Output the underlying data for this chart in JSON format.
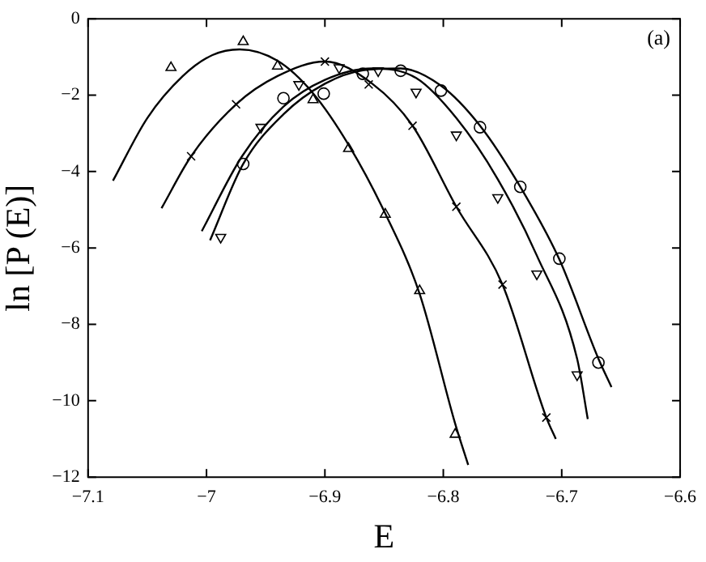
{
  "chart_data": {
    "type": "scatter",
    "xlabel": "E",
    "ylabel": "ln [P (E)]",
    "annotations": [
      "(a)"
    ],
    "xlim": [
      -7.1,
      -6.6
    ],
    "xticks": [
      -7.1,
      -7,
      -6.9,
      -6.8,
      -6.7,
      -6.6
    ],
    "ylim": [
      -12,
      0
    ],
    "yticks": [
      -12,
      -10,
      -8,
      -6,
      -4,
      -2,
      0
    ],
    "grid": false,
    "legend": false,
    "series": [
      {
        "type": "scatter",
        "marker": "triangle",
        "color": "#000000",
        "x": [
          -7.03,
          -6.969,
          -6.94,
          -6.91,
          -6.88,
          -6.849,
          -6.82,
          -6.79
        ],
        "values": [
          -1.28,
          -0.6,
          -1.24,
          -2.12,
          -3.4,
          -5.12,
          -7.12,
          -10.88
        ]
      },
      {
        "type": "scatter",
        "marker": "cross",
        "color": "#000000",
        "x": [
          -7.013,
          -6.975,
          -6.9,
          -6.863,
          -6.826,
          -6.789,
          -6.75,
          -6.713
        ],
        "values": [
          -3.6,
          -2.24,
          -1.12,
          -1.72,
          -2.8,
          -4.92,
          -6.96,
          -10.44
        ]
      },
      {
        "type": "scatter",
        "marker": "circle",
        "color": "#000000",
        "x": [
          -6.969,
          -6.935,
          -6.901,
          -6.868,
          -6.836,
          -6.802,
          -6.769,
          -6.735,
          -6.702,
          -6.669
        ],
        "values": [
          -3.8,
          -2.08,
          -1.96,
          -1.44,
          -1.36,
          -1.88,
          -2.84,
          -4.4,
          -6.28,
          -9.0
        ]
      },
      {
        "type": "scatter",
        "marker": "triangle-down",
        "color": "#000000",
        "x": [
          -6.988,
          -6.954,
          -6.922,
          -6.888,
          -6.855,
          -6.823,
          -6.789,
          -6.754,
          -6.721,
          -6.687
        ],
        "values": [
          -5.72,
          -2.84,
          -1.72,
          -1.28,
          -1.36,
          -1.92,
          -3.04,
          -4.68,
          -6.68,
          -9.32
        ]
      },
      {
        "type": "line",
        "marker": "none",
        "line_style": "solid",
        "color": "#000000",
        "x": [
          -7.079,
          -7.05,
          -7.02,
          -6.995,
          -6.972,
          -6.94,
          -6.91,
          -6.88,
          -6.849,
          -6.82,
          -6.79,
          -6.779
        ],
        "values": [
          -4.24,
          -2.6,
          -1.5,
          -0.95,
          -0.8,
          -1.1,
          -1.95,
          -3.3,
          -5.1,
          -7.2,
          -10.6,
          -11.68
        ]
      },
      {
        "type": "line",
        "marker": "none",
        "line_style": "solid",
        "color": "#000000",
        "x": [
          -7.038,
          -7.013,
          -6.975,
          -6.94,
          -6.9,
          -6.86,
          -6.826,
          -6.789,
          -6.75,
          -6.713,
          -6.705
        ],
        "values": [
          -4.96,
          -3.6,
          -2.24,
          -1.5,
          -1.12,
          -1.7,
          -2.8,
          -4.92,
          -6.96,
          -10.44,
          -11.0
        ]
      },
      {
        "type": "line",
        "marker": "none",
        "line_style": "solid",
        "color": "#000000",
        "x": [
          -6.997,
          -6.969,
          -6.935,
          -6.9,
          -6.868,
          -6.836,
          -6.802,
          -6.769,
          -6.735,
          -6.702,
          -6.669,
          -6.658
        ],
        "values": [
          -5.8,
          -3.8,
          -2.5,
          -1.7,
          -1.35,
          -1.3,
          -1.75,
          -2.8,
          -4.4,
          -6.3,
          -8.9,
          -9.64
        ]
      },
      {
        "type": "line",
        "marker": "none",
        "line_style": "solid",
        "color": "#000000",
        "x": [
          -7.004,
          -6.97,
          -6.935,
          -6.9,
          -6.86,
          -6.823,
          -6.789,
          -6.754,
          -6.721,
          -6.687,
          -6.678
        ],
        "values": [
          -5.56,
          -3.6,
          -2.3,
          -1.6,
          -1.3,
          -1.55,
          -2.6,
          -4.2,
          -6.2,
          -8.9,
          -10.48
        ]
      }
    ]
  }
}
